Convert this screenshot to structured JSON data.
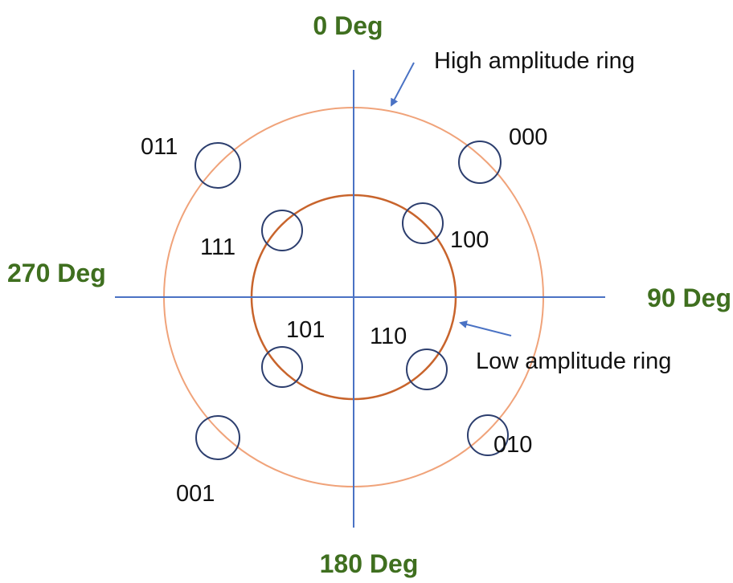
{
  "colors": {
    "axis": "#4a72c4",
    "outer_ring": "#f0a37a",
    "inner_ring": "#c8642c",
    "point": "#2c3e6e",
    "degree_label": "#3f6f1f",
    "arrow": "#4a72c4",
    "text": "#111111"
  },
  "degree_labels": {
    "top": "0 Deg",
    "right": "90 Deg",
    "bottom": "180 Deg",
    "left": "270 Deg"
  },
  "annotations": {
    "high_ring": "High amplitude ring",
    "low_ring": "Low amplitude ring"
  },
  "points": [
    {
      "code": "000",
      "ring": "high"
    },
    {
      "code": "001",
      "ring": "high"
    },
    {
      "code": "010",
      "ring": "high"
    },
    {
      "code": "011",
      "ring": "high"
    },
    {
      "code": "100",
      "ring": "low"
    },
    {
      "code": "101",
      "ring": "low"
    },
    {
      "code": "110",
      "ring": "low"
    },
    {
      "code": "111",
      "ring": "low"
    }
  ]
}
